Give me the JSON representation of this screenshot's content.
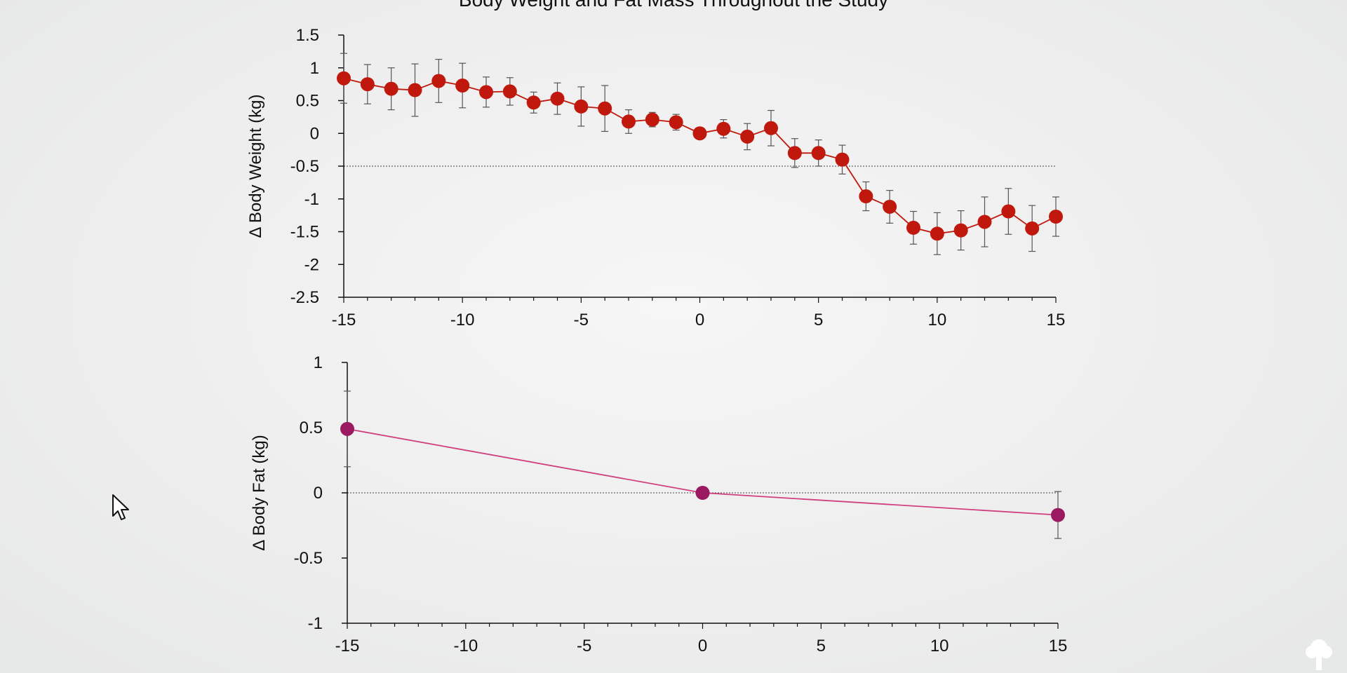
{
  "title": "Body Weight and Fat Mass Throughout the Study",
  "colors": {
    "weight": "#c0180c",
    "fat": "#9b1960",
    "fat_line": "#d0407f",
    "error": "#555555"
  },
  "icons": {
    "cursor": "mouse-pointer-icon",
    "logo": "tree-logo-icon"
  },
  "chart_data": [
    {
      "type": "line",
      "ylabel": "Δ Body Weight (kg)",
      "xlim": [
        -15,
        15
      ],
      "ylim": [
        -2.5,
        1.5
      ],
      "xticks": [
        -15,
        -10,
        -5,
        0,
        5,
        10,
        15
      ],
      "xtick_labels": [
        "-15",
        "-10",
        "-5",
        "0",
        "5",
        "10",
        "15"
      ],
      "yticks": [
        1.5,
        1,
        0.5,
        0,
        -0.5,
        -1,
        -1.5,
        -2,
        -2.5
      ],
      "ytick_labels": [
        "1.5",
        "1",
        "0.5",
        "0",
        "-0.5",
        "-1",
        "-1.5",
        "-2",
        "-2.5"
      ],
      "reference_line": -0.5,
      "series": [
        {
          "x": [
            -15,
            -14,
            -13,
            -12,
            -11,
            -10,
            -9,
            -8,
            -7,
            -6,
            -5,
            -4,
            -3,
            -2,
            -1,
            0,
            1,
            2,
            3,
            4,
            5,
            6,
            7,
            8,
            9,
            10,
            11,
            12,
            13,
            14,
            15
          ],
          "values": [
            0.84,
            0.75,
            0.68,
            0.66,
            0.8,
            0.73,
            0.63,
            0.64,
            0.47,
            0.53,
            0.41,
            0.38,
            0.18,
            0.21,
            0.17,
            0.0,
            0.07,
            -0.05,
            0.08,
            -0.3,
            -0.3,
            -0.4,
            -0.96,
            -1.12,
            -1.44,
            -1.53,
            -1.48,
            -1.35,
            -1.19,
            -1.45,
            -1.27
          ],
          "error": [
            0.38,
            0.3,
            0.32,
            0.4,
            0.33,
            0.34,
            0.23,
            0.21,
            0.16,
            0.24,
            0.3,
            0.35,
            0.18,
            0.11,
            0.12,
            0.0,
            0.14,
            0.2,
            0.27,
            0.22,
            0.2,
            0.22,
            0.22,
            0.25,
            0.25,
            0.32,
            0.3,
            0.38,
            0.35,
            0.35,
            0.3
          ]
        }
      ]
    },
    {
      "type": "line",
      "ylabel": "Δ Body Fat (kg)",
      "xlim": [
        -15,
        15
      ],
      "ylim": [
        -1,
        1
      ],
      "xticks": [
        -15,
        -10,
        -5,
        0,
        5,
        10,
        15
      ],
      "xtick_labels": [
        "-15",
        "-10",
        "-5",
        "0",
        "5",
        "10",
        "15"
      ],
      "yticks": [
        1,
        0.5,
        0,
        -0.5,
        -1
      ],
      "ytick_labels": [
        "1",
        "0.5",
        "0",
        "-0.5",
        "-1"
      ],
      "reference_line": 0,
      "series": [
        {
          "x": [
            -15,
            0,
            15
          ],
          "values": [
            0.49,
            0.0,
            -0.17
          ],
          "error": [
            0.29,
            0.0,
            0.18
          ]
        }
      ]
    }
  ]
}
